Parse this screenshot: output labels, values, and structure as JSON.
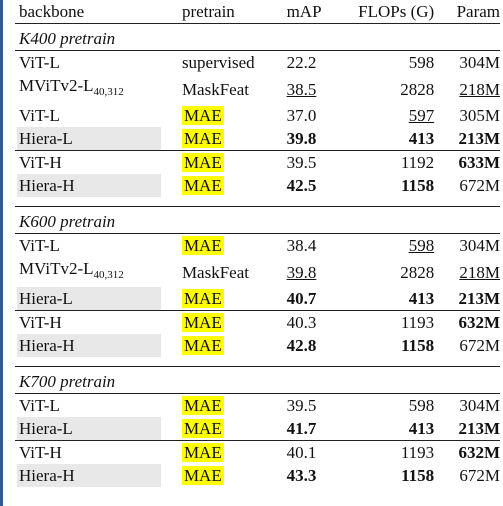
{
  "header": {
    "backbone": "backbone",
    "pretrain": "pretrain",
    "map": "mAP",
    "flops": "FLOPs (G)",
    "param": "Param"
  },
  "colors": {
    "highlight": "#ffff00",
    "shade": "#e8e8e8",
    "left_bar": "#2f5d93"
  },
  "sections": [
    {
      "title": "K400 pretrain",
      "rows": [
        {
          "backbone": "ViT-L",
          "pretrain": "supervised",
          "map": "22.2",
          "flops": "598",
          "param": "304M"
        },
        {
          "backbone": "MViTv2-L",
          "sub": "40,312",
          "pretrain": "MaskFeat",
          "map": "38.5",
          "flops": "2828",
          "param": "218M"
        },
        {
          "backbone": "ViT-L",
          "pretrain": "MAE",
          "map": "37.0",
          "flops": "597",
          "param": "305M"
        },
        {
          "backbone": "Hiera-L",
          "pretrain": "MAE",
          "map": "39.8",
          "flops": "413",
          "param": "213M"
        },
        {
          "backbone": "ViT-H",
          "pretrain": "MAE",
          "map": "39.5",
          "flops": "1192",
          "param": "633M"
        },
        {
          "backbone": "Hiera-H",
          "pretrain": "MAE",
          "map": "42.5",
          "flops": "1158",
          "param": "672M"
        }
      ]
    },
    {
      "title": "K600 pretrain",
      "rows": [
        {
          "backbone": "ViT-L",
          "pretrain": "MAE",
          "map": "38.4",
          "flops": "598",
          "param": "304M"
        },
        {
          "backbone": "MViTv2-L",
          "sub": "40,312",
          "pretrain": "MaskFeat",
          "map": "39.8",
          "flops": "2828",
          "param": "218M"
        },
        {
          "backbone": "Hiera-L",
          "pretrain": "MAE",
          "map": "40.7",
          "flops": "413",
          "param": "213M"
        },
        {
          "backbone": "ViT-H",
          "pretrain": "MAE",
          "map": "40.3",
          "flops": "1193",
          "param": "632M"
        },
        {
          "backbone": "Hiera-H",
          "pretrain": "MAE",
          "map": "42.8",
          "flops": "1158",
          "param": "672M"
        }
      ]
    },
    {
      "title": "K700 pretrain",
      "rows": [
        {
          "backbone": "ViT-L",
          "pretrain": "MAE",
          "map": "39.5",
          "flops": "598",
          "param": "304M"
        },
        {
          "backbone": "Hiera-L",
          "pretrain": "MAE",
          "map": "41.7",
          "flops": "413",
          "param": "213M"
        },
        {
          "backbone": "ViT-H",
          "pretrain": "MAE",
          "map": "40.1",
          "flops": "1193",
          "param": "632M"
        },
        {
          "backbone": "Hiera-H",
          "pretrain": "MAE",
          "map": "43.3",
          "flops": "1158",
          "param": "672M"
        }
      ]
    }
  ]
}
